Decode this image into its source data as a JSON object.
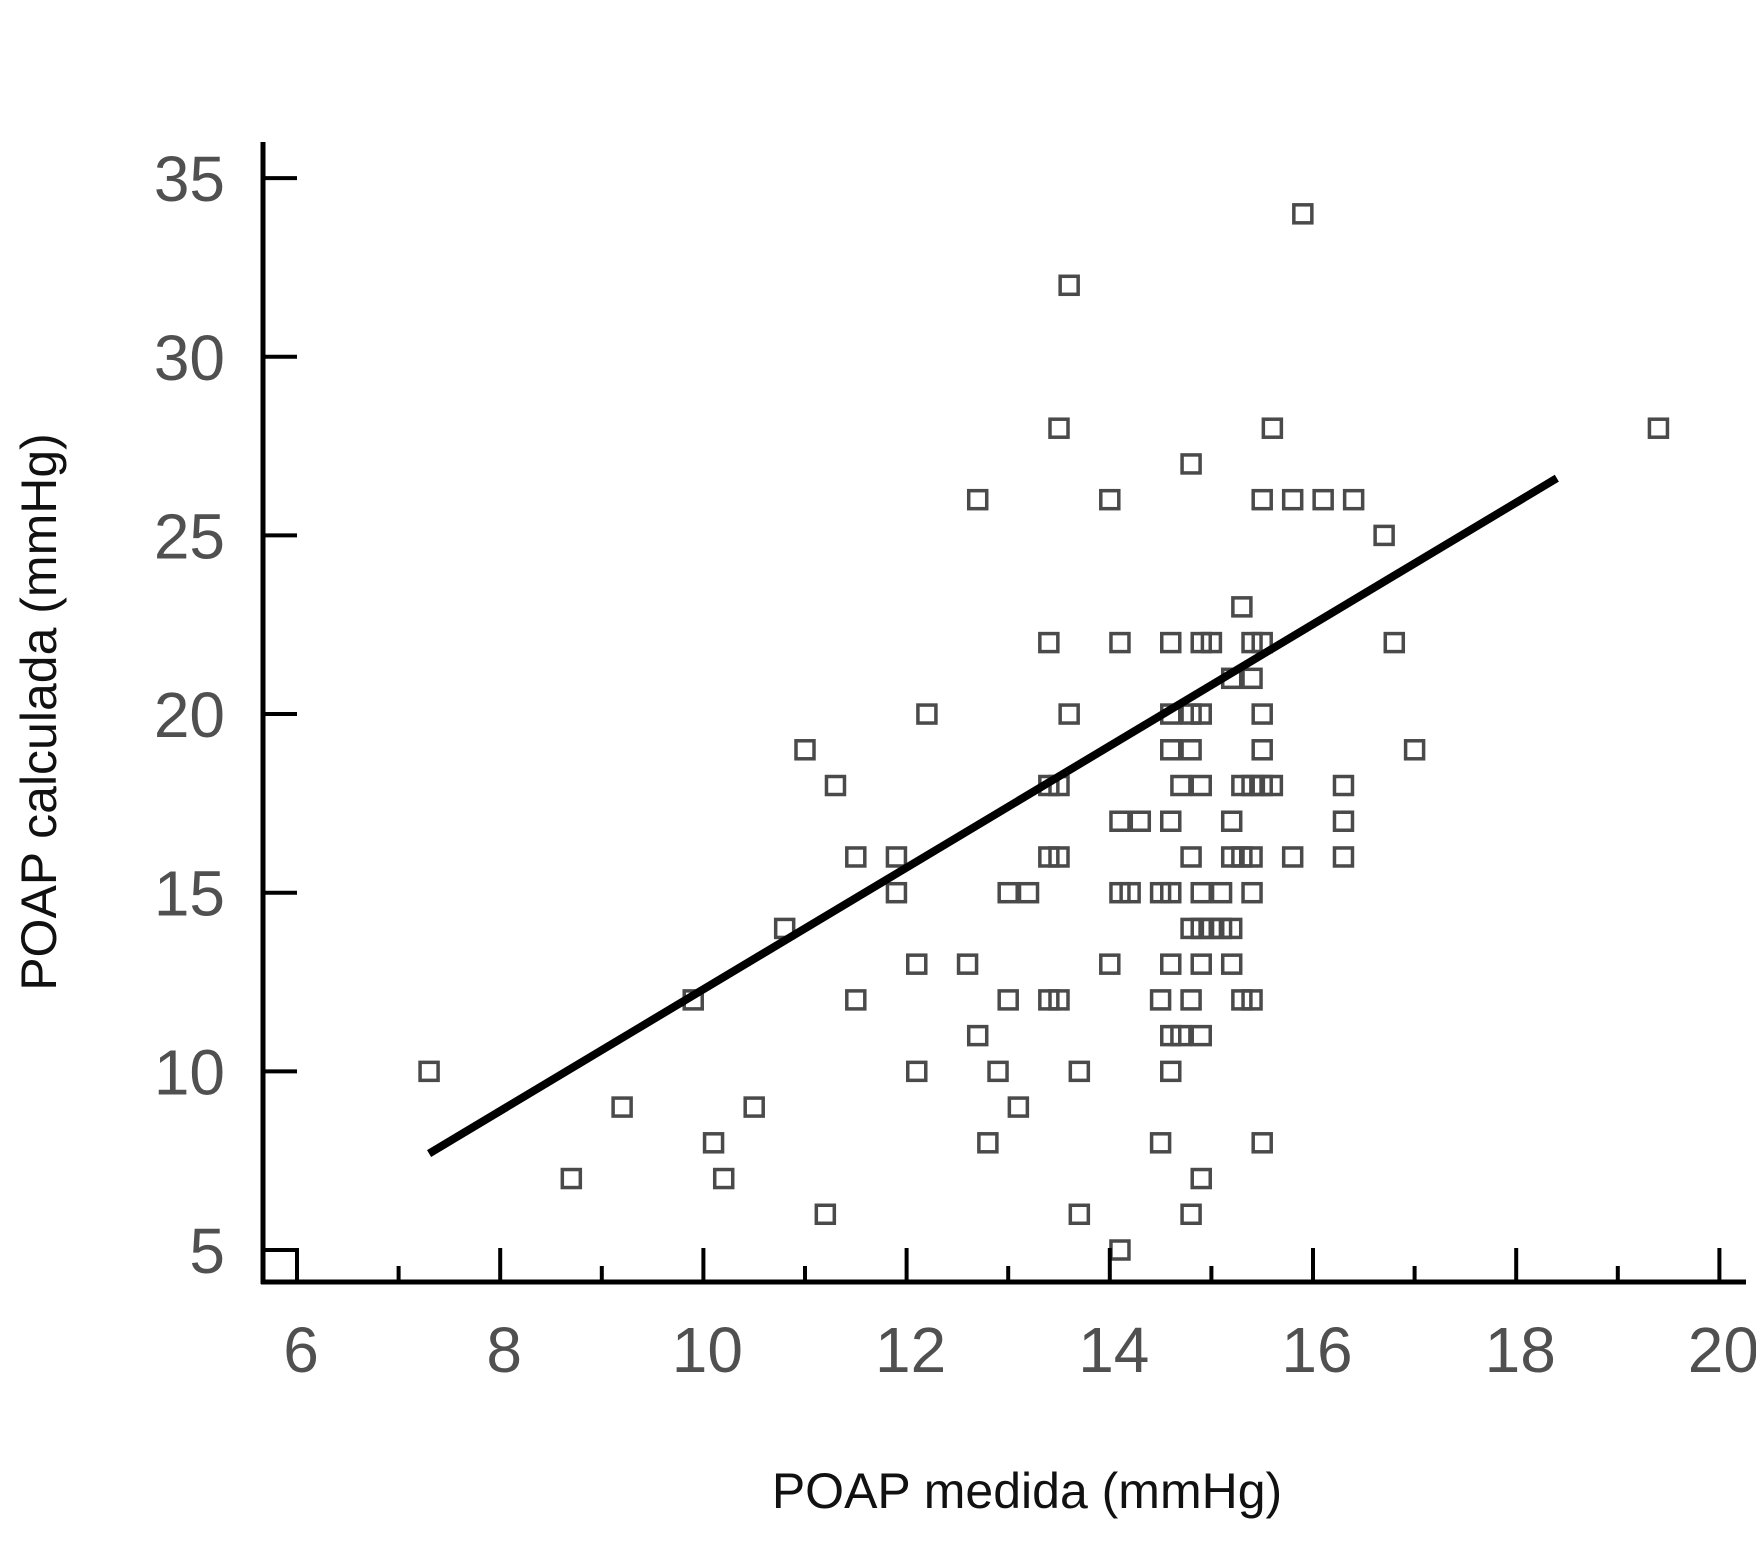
{
  "chart_data": {
    "type": "scatter",
    "title": "",
    "xlabel": "POAP medida (mmHg)",
    "ylabel": "POAP calculada (mmHg)",
    "xlim": [
      5.6,
      20
    ],
    "ylim": [
      4,
      36
    ],
    "xticks_major": [
      6,
      8,
      10,
      12,
      14,
      16,
      18,
      20
    ],
    "xticks_minor": [
      7,
      9,
      11,
      13,
      15,
      17,
      19
    ],
    "yticks": [
      5,
      10,
      15,
      20,
      25,
      30,
      35
    ],
    "xtick_labels": [
      "6",
      "8",
      "10",
      "12",
      "14",
      "16",
      "18",
      "20"
    ],
    "ytick_labels": [
      "5",
      "10",
      "15",
      "20",
      "25",
      "30",
      "35"
    ],
    "grid": false,
    "legend": "none",
    "marker": "open-square",
    "colors": {
      "axis": "#000000",
      "marker": "#4a4a4a",
      "regression_line": "#000000",
      "tick_label": "#505050"
    },
    "regression_line": {
      "x": [
        7.3,
        18.4
      ],
      "y": [
        7.7,
        26.6
      ]
    },
    "points": [
      [
        7.3,
        10
      ],
      [
        8.7,
        7
      ],
      [
        9.2,
        9
      ],
      [
        9.9,
        12
      ],
      [
        10.1,
        8
      ],
      [
        10.2,
        7
      ],
      [
        10.5,
        9
      ],
      [
        10.8,
        14
      ],
      [
        11.0,
        19
      ],
      [
        11.2,
        6
      ],
      [
        11.3,
        18
      ],
      [
        11.5,
        16
      ],
      [
        11.5,
        12
      ],
      [
        11.9,
        16
      ],
      [
        11.9,
        15
      ],
      [
        12.1,
        13
      ],
      [
        12.1,
        10
      ],
      [
        12.2,
        20
      ],
      [
        12.6,
        13
      ],
      [
        12.7,
        26
      ],
      [
        12.7,
        11
      ],
      [
        12.8,
        8
      ],
      [
        12.9,
        10
      ],
      [
        13.0,
        15
      ],
      [
        13.0,
        12
      ],
      [
        13.1,
        9
      ],
      [
        13.2,
        15
      ],
      [
        13.4,
        22
      ],
      [
        13.4,
        18
      ],
      [
        13.4,
        16
      ],
      [
        13.4,
        12
      ],
      [
        13.5,
        28
      ],
      [
        13.5,
        18
      ],
      [
        13.5,
        16
      ],
      [
        13.5,
        12
      ],
      [
        13.6,
        32
      ],
      [
        13.6,
        20
      ],
      [
        13.7,
        10
      ],
      [
        13.7,
        6
      ],
      [
        14.0,
        26
      ],
      [
        14.0,
        13
      ],
      [
        14.1,
        22
      ],
      [
        14.1,
        17
      ],
      [
        14.1,
        15
      ],
      [
        14.1,
        5
      ],
      [
        14.2,
        15
      ],
      [
        14.3,
        17
      ],
      [
        14.5,
        15
      ],
      [
        14.5,
        12
      ],
      [
        14.5,
        8
      ],
      [
        14.6,
        22
      ],
      [
        14.6,
        20
      ],
      [
        14.6,
        19
      ],
      [
        14.6,
        17
      ],
      [
        14.6,
        15
      ],
      [
        14.6,
        13
      ],
      [
        14.6,
        11
      ],
      [
        14.6,
        10
      ],
      [
        14.7,
        18
      ],
      [
        14.7,
        11
      ],
      [
        14.8,
        27
      ],
      [
        14.8,
        20
      ],
      [
        14.8,
        19
      ],
      [
        14.8,
        16
      ],
      [
        14.8,
        14
      ],
      [
        14.8,
        12
      ],
      [
        14.8,
        6
      ],
      [
        14.9,
        22
      ],
      [
        14.9,
        20
      ],
      [
        14.9,
        18
      ],
      [
        14.9,
        15
      ],
      [
        14.9,
        14
      ],
      [
        14.9,
        13
      ],
      [
        14.9,
        11
      ],
      [
        14.9,
        7
      ],
      [
        15.0,
        22
      ],
      [
        15.0,
        14
      ],
      [
        15.1,
        15
      ],
      [
        15.1,
        14
      ],
      [
        15.2,
        21
      ],
      [
        15.2,
        17
      ],
      [
        15.2,
        16
      ],
      [
        15.2,
        14
      ],
      [
        15.2,
        13
      ],
      [
        15.3,
        23
      ],
      [
        15.3,
        18
      ],
      [
        15.3,
        16
      ],
      [
        15.3,
        12
      ],
      [
        15.4,
        22
      ],
      [
        15.4,
        21
      ],
      [
        15.4,
        18
      ],
      [
        15.4,
        16
      ],
      [
        15.4,
        15
      ],
      [
        15.4,
        12
      ],
      [
        15.5,
        26
      ],
      [
        15.5,
        22
      ],
      [
        15.5,
        20
      ],
      [
        15.5,
        19
      ],
      [
        15.5,
        18
      ],
      [
        15.5,
        8
      ],
      [
        15.6,
        28
      ],
      [
        15.6,
        18
      ],
      [
        15.8,
        26
      ],
      [
        15.8,
        16
      ],
      [
        15.9,
        34
      ],
      [
        16.1,
        26
      ],
      [
        16.3,
        18
      ],
      [
        16.3,
        17
      ],
      [
        16.3,
        16
      ],
      [
        16.4,
        26
      ],
      [
        16.7,
        25
      ],
      [
        16.8,
        22
      ],
      [
        17.0,
        19
      ],
      [
        19.4,
        28
      ]
    ]
  }
}
